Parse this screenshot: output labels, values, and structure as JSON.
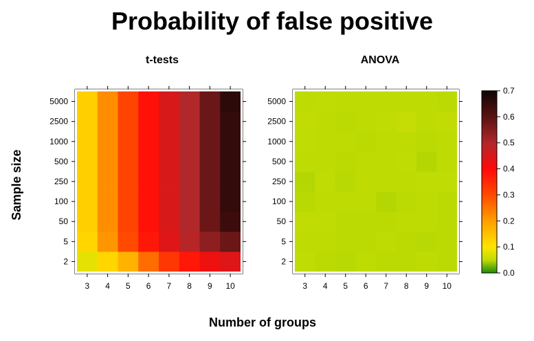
{
  "title": "Probability of false positive",
  "xlabel": "Number of groups",
  "ylabel": "Sample size",
  "chart_data": [
    {
      "type": "heatmap",
      "title": "t-tests",
      "x": [
        "3",
        "4",
        "5",
        "6",
        "7",
        "8",
        "9",
        "10"
      ],
      "y": [
        "2",
        "5",
        "50",
        "100",
        "250",
        "500",
        "1000",
        "2500",
        "5000"
      ],
      "values": [
        [
          0.08,
          0.12,
          0.17,
          0.26,
          0.33,
          0.38,
          0.42,
          0.44
        ],
        [
          0.12,
          0.21,
          0.3,
          0.38,
          0.44,
          0.49,
          0.54,
          0.58
        ],
        [
          0.13,
          0.22,
          0.31,
          0.39,
          0.45,
          0.5,
          0.58,
          0.64
        ],
        [
          0.13,
          0.22,
          0.31,
          0.39,
          0.45,
          0.5,
          0.58,
          0.65
        ],
        [
          0.13,
          0.22,
          0.31,
          0.39,
          0.45,
          0.5,
          0.58,
          0.65
        ],
        [
          0.13,
          0.22,
          0.31,
          0.39,
          0.45,
          0.5,
          0.58,
          0.65
        ],
        [
          0.13,
          0.22,
          0.31,
          0.39,
          0.45,
          0.5,
          0.58,
          0.65
        ],
        [
          0.13,
          0.22,
          0.31,
          0.39,
          0.45,
          0.5,
          0.58,
          0.65
        ],
        [
          0.13,
          0.22,
          0.31,
          0.39,
          0.45,
          0.5,
          0.58,
          0.66
        ]
      ]
    },
    {
      "type": "heatmap",
      "title": "ANOVA",
      "x": [
        "3",
        "4",
        "5",
        "6",
        "7",
        "8",
        "9",
        "10"
      ],
      "y": [
        "2",
        "5",
        "50",
        "100",
        "250",
        "500",
        "1000",
        "2500",
        "5000"
      ],
      "values": [
        [
          0.051,
          0.049,
          0.048,
          0.05,
          0.049,
          0.049,
          0.05,
          0.049
        ],
        [
          0.05,
          0.05,
          0.049,
          0.049,
          0.05,
          0.049,
          0.048,
          0.049
        ],
        [
          0.052,
          0.051,
          0.049,
          0.049,
          0.049,
          0.05,
          0.05,
          0.049
        ],
        [
          0.048,
          0.05,
          0.05,
          0.05,
          0.047,
          0.049,
          0.05,
          0.049
        ],
        [
          0.047,
          0.051,
          0.048,
          0.05,
          0.05,
          0.05,
          0.051,
          0.051
        ],
        [
          0.05,
          0.05,
          0.049,
          0.05,
          0.05,
          0.051,
          0.047,
          0.05
        ],
        [
          0.051,
          0.05,
          0.05,
          0.049,
          0.05,
          0.05,
          0.049,
          0.05
        ],
        [
          0.052,
          0.05,
          0.049,
          0.05,
          0.051,
          0.055,
          0.05,
          0.052
        ],
        [
          0.05,
          0.051,
          0.05,
          0.05,
          0.05,
          0.05,
          0.05,
          0.049
        ]
      ]
    }
  ],
  "colorbar": {
    "min": 0.0,
    "max": 0.7,
    "ticks": [
      "0.0",
      "0.1",
      "0.2",
      "0.3",
      "0.4",
      "0.5",
      "0.6",
      "0.7"
    ],
    "stops": [
      {
        "v": 0.0,
        "color": "#1e8c0a"
      },
      {
        "v": 0.05,
        "color": "#bedc04"
      },
      {
        "v": 0.1,
        "color": "#ffe400"
      },
      {
        "v": 0.2,
        "color": "#ff9e00"
      },
      {
        "v": 0.3,
        "color": "#ff4a00"
      },
      {
        "v": 0.4,
        "color": "#ff0a0a"
      },
      {
        "v": 0.5,
        "color": "#b0282a"
      },
      {
        "v": 0.6,
        "color": "#5a1212"
      },
      {
        "v": 0.7,
        "color": "#0f0404"
      }
    ]
  }
}
